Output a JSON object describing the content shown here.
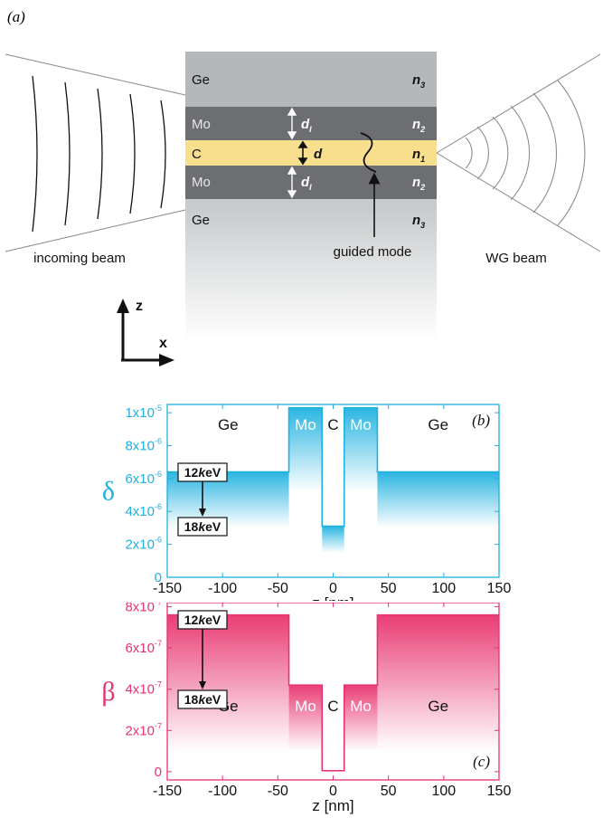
{
  "panel_a": {
    "label": "(a)",
    "layers": [
      {
        "material": "Ge",
        "index": "n",
        "sub": "3"
      },
      {
        "material": "Mo",
        "index": "n",
        "sub": "2",
        "thickness_symbol": "d",
        "thickness_sub": "l"
      },
      {
        "material": "C",
        "index": "n",
        "sub": "1",
        "thickness_symbol": "d"
      },
      {
        "material": "Mo",
        "index": "n",
        "sub": "2",
        "thickness_symbol": "d",
        "thickness_sub": "l"
      },
      {
        "material": "Ge",
        "index": "n",
        "sub": "3"
      }
    ],
    "incoming_label": "incoming beam",
    "guided_label": "guided mode",
    "wg_label": "WG beam",
    "axis_z": "z",
    "axis_x": "x",
    "colors": {
      "ge": "#b4b8bb",
      "mo": "#6c6e71",
      "c": "#f8df8e"
    }
  },
  "chart_data": [
    {
      "type": "area",
      "panel": "(b)",
      "ylabel": "δ",
      "xlabel": "z [nm]",
      "xlim": [
        -150,
        150
      ],
      "ylim": [
        0,
        1.05e-05
      ],
      "x_ticks": [
        "-150",
        "-100",
        "-50",
        "0",
        "50",
        "100",
        "150"
      ],
      "y_ticks": [
        {
          "v": 0,
          "label": "0"
        },
        {
          "v": 2e-06,
          "label": "2x10",
          "exp": "-6"
        },
        {
          "v": 4e-06,
          "label": "4x10",
          "exp": "-6"
        },
        {
          "v": 6e-06,
          "label": "6x10",
          "exp": "-6"
        },
        {
          "v": 8e-06,
          "label": "8x10",
          "exp": "-6"
        },
        {
          "v": 1e-05,
          "label": "1x10",
          "exp": "-5"
        }
      ],
      "color": "#1fb1e0",
      "segments": [
        {
          "material": "Ge",
          "x": [
            -150,
            -40
          ],
          "y_12keV": 6.4e-06,
          "y_18keV": 3e-06
        },
        {
          "material": "Mo",
          "x": [
            -40,
            -10
          ],
          "y_12keV": 1.03e-05,
          "y_18keV": 5.2e-06
        },
        {
          "material": "C",
          "x": [
            -10,
            10
          ],
          "y_12keV": 3.1e-06,
          "y_18keV": 1.5e-06
        },
        {
          "material": "Mo",
          "x": [
            10,
            40
          ],
          "y_12keV": 1.03e-05,
          "y_18keV": 5.2e-06
        },
        {
          "material": "Ge",
          "x": [
            40,
            150
          ],
          "y_12keV": 6.4e-06,
          "y_18keV": 3e-06
        }
      ],
      "annotations": {
        "energy_top": "12",
        "energy_bottom": "18",
        "unit_k": "k",
        "unit_ev": "eV"
      }
    },
    {
      "type": "area",
      "panel": "(c)",
      "ylabel": "β",
      "xlabel": "z [nm]",
      "xlim": [
        -150,
        150
      ],
      "ylim": [
        -4e-08,
        8.2e-07
      ],
      "x_ticks": [
        "-150",
        "-100",
        "-50",
        "0",
        "50",
        "100",
        "150"
      ],
      "y_ticks": [
        {
          "v": 0,
          "label": "0"
        },
        {
          "v": 2e-07,
          "label": "2x10",
          "exp": "-7"
        },
        {
          "v": 4e-07,
          "label": "4x10",
          "exp": "-7"
        },
        {
          "v": 6e-07,
          "label": "6x10",
          "exp": "-7"
        },
        {
          "v": 8e-07,
          "label": "8x10",
          "exp": "-7"
        }
      ],
      "color": "#e8336e",
      "segments": [
        {
          "material": "Ge",
          "x": [
            -150,
            -40
          ],
          "y_12keV": 7.6e-07,
          "y_18keV": 1e-07
        },
        {
          "material": "Mo",
          "x": [
            -40,
            -10
          ],
          "y_12keV": 4.2e-07,
          "y_18keV": 1e-07
        },
        {
          "material": "C",
          "x": [
            -10,
            10
          ],
          "y_12keV": 5e-09,
          "y_18keV": 0
        },
        {
          "material": "Mo",
          "x": [
            10,
            40
          ],
          "y_12keV": 4.2e-07,
          "y_18keV": 1e-07
        },
        {
          "material": "Ge",
          "x": [
            40,
            150
          ],
          "y_12keV": 7.6e-07,
          "y_18keV": 1e-07
        }
      ],
      "annotations": {
        "energy_top": "12",
        "energy_bottom": "18",
        "unit_k": "k",
        "unit_ev": "eV"
      }
    }
  ]
}
